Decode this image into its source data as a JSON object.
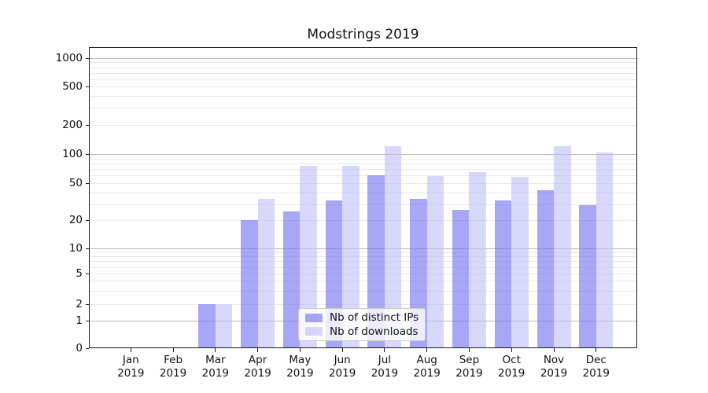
{
  "chart_data": {
    "type": "bar",
    "title": "Modstrings 2019",
    "categories": [
      "Jan 2019",
      "Feb 2019",
      "Mar 2019",
      "Apr 2019",
      "May 2019",
      "Jun 2019",
      "Jul 2019",
      "Aug 2019",
      "Sep 2019",
      "Oct 2019",
      "Nov 2019",
      "Dec 2019"
    ],
    "series": [
      {
        "name": "Nb of distinct IPs",
        "color": "#6c6cee",
        "color_rgba": "rgba(108,108,238,0.6)",
        "values": [
          0,
          0,
          2,
          20,
          25,
          33,
          60,
          34,
          26,
          33,
          42,
          29
        ]
      },
      {
        "name": "Nb of downloads",
        "color": "#bebef8",
        "color_rgba": "rgba(190,190,248,0.6)",
        "values": [
          0,
          0,
          2,
          34,
          76,
          76,
          120,
          59,
          65,
          58,
          120,
          103
        ]
      }
    ],
    "yticks": [
      0,
      1,
      2,
      5,
      10,
      20,
      50,
      100,
      200,
      500,
      1000
    ],
    "yscale": "asinh",
    "ylim": [
      0,
      1400
    ],
    "xlabel": "",
    "ylabel": "",
    "grid": true,
    "legend_position": "lower center",
    "grid_major_color": "#b9b9b9",
    "grid_minor_color": "#e9e9e9"
  }
}
